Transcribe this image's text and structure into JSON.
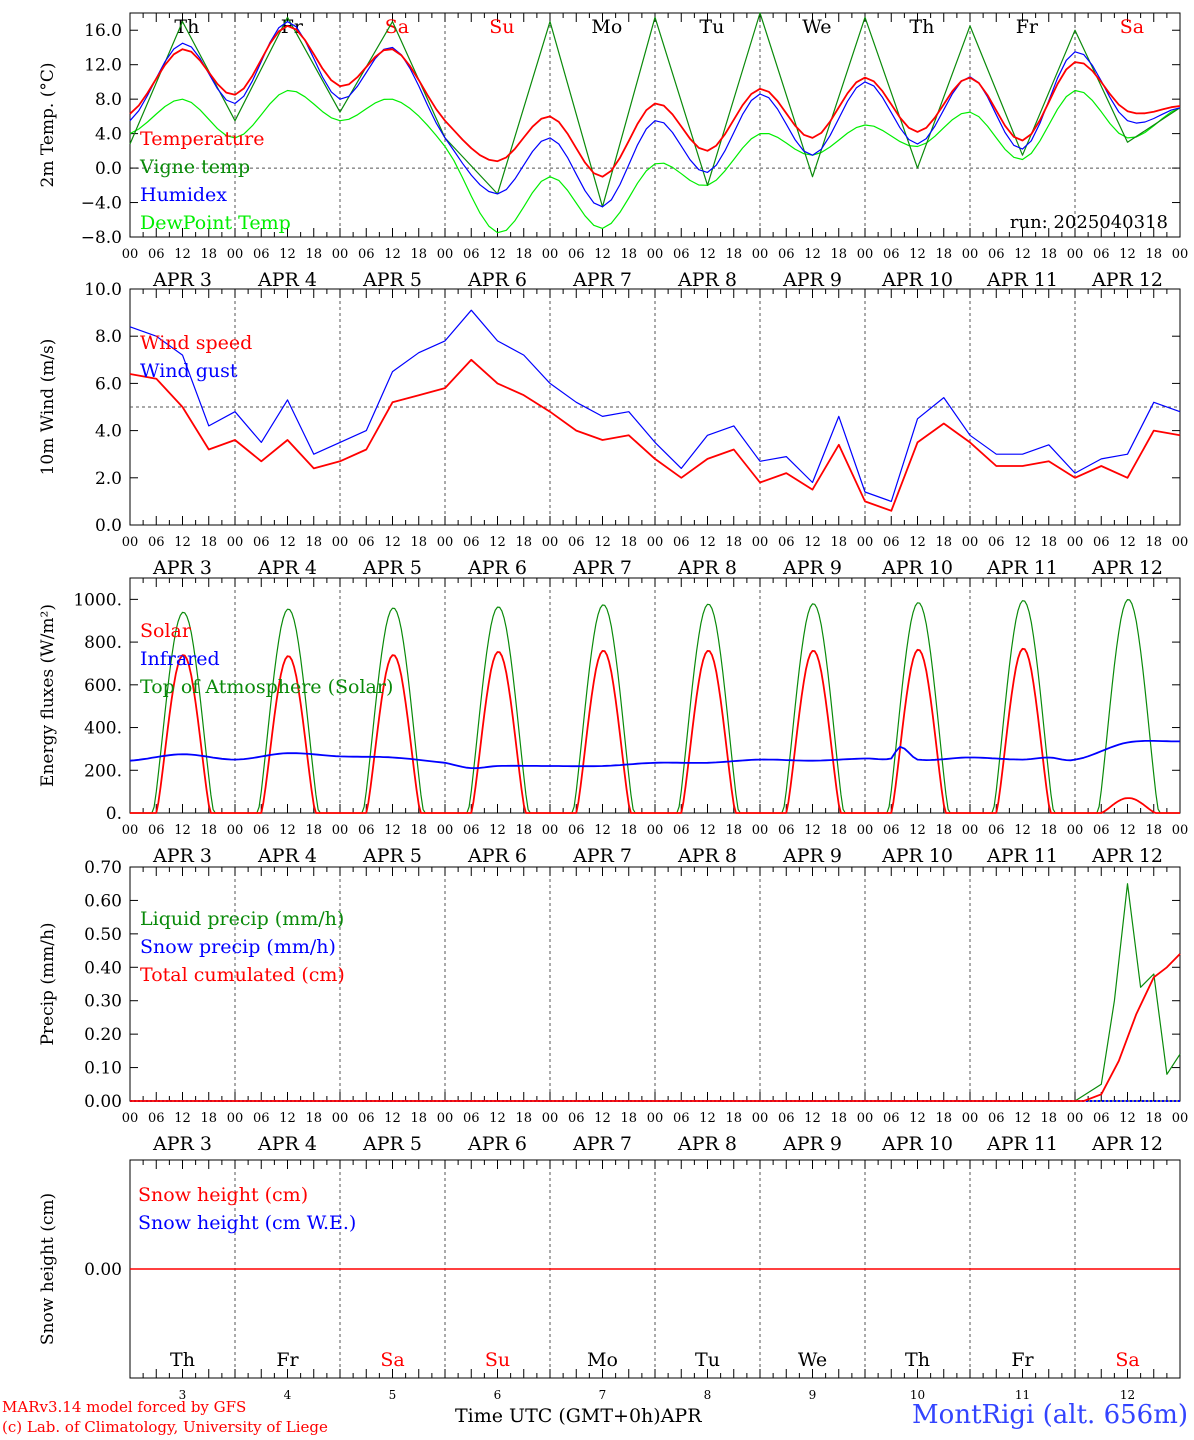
{
  "chart_data": [
    {
      "type": "line",
      "ylabel": "2m Temp. (°C)",
      "ylim": [
        -8,
        18
      ],
      "yticks": [
        "16.0",
        "12.0",
        "8.0",
        "4.0",
        "0.0",
        "−4.0",
        "−8.0"
      ],
      "ytick_values": [
        16,
        12,
        8,
        4,
        0,
        -4,
        -8
      ],
      "reference_line": 0,
      "annotation": "run: 2025040318",
      "x": [
        0,
        12,
        24,
        36,
        48,
        60,
        72,
        84,
        96,
        108,
        120,
        132,
        144,
        156,
        168,
        180,
        192,
        204,
        216,
        228,
        240
      ],
      "series": [
        {
          "name": "Temperature",
          "color": "#ff0000",
          "values": [
            6.3,
            13.8,
            8.5,
            16.5,
            9.5,
            13.8,
            5.5,
            0.8,
            6.0,
            -1.0,
            7.5,
            2.0,
            9.2,
            3.5,
            10.5,
            4.2,
            10.5,
            3.2,
            12.3,
            6.6,
            7.2
          ]
        },
        {
          "name": "Vigne temp",
          "color": "#0a8a0a",
          "values": [
            2.8,
            17.0,
            5.5,
            17.5,
            6.5,
            17.0,
            3.5,
            -3.0,
            17.0,
            -4.5,
            17.5,
            -2.0,
            18.0,
            -1.0,
            17.5,
            0.0,
            16.5,
            1.5,
            16.0,
            3.0,
            7.0
          ]
        },
        {
          "name": "Humidex",
          "color": "#0000ff",
          "values": [
            5.5,
            14.5,
            7.5,
            17.0,
            8.0,
            14.0,
            3.5,
            -3.0,
            3.5,
            -4.5,
            5.5,
            -0.5,
            8.6,
            1.5,
            10.0,
            2.8,
            10.6,
            2.2,
            13.5,
            5.5,
            7.0
          ]
        },
        {
          "name": "DewPoint Temp",
          "color": "#00ee00",
          "values": [
            4.0,
            8.0,
            3.5,
            9.0,
            5.5,
            8.0,
            2.5,
            -7.5,
            -1.0,
            -7.0,
            0.5,
            -2.0,
            4.0,
            1.5,
            5.0,
            2.5,
            6.5,
            1.0,
            9.0,
            3.5,
            7.0
          ]
        }
      ]
    },
    {
      "type": "line",
      "ylabel": "10m Wind (m/s)",
      "ylim": [
        0,
        10
      ],
      "yticks": [
        "10.0",
        "8.0",
        "6.0",
        "4.0",
        "2.0",
        "0.0"
      ],
      "ytick_values": [
        10,
        8,
        6,
        4,
        2,
        0
      ],
      "reference_line": 5,
      "x": [
        0,
        6,
        12,
        18,
        24,
        30,
        36,
        42,
        48,
        54,
        60,
        66,
        72,
        78,
        84,
        90,
        96,
        102,
        108,
        114,
        120,
        126,
        132,
        138,
        144,
        150,
        156,
        162,
        168,
        174,
        180,
        186,
        192,
        198,
        204,
        210,
        216,
        222,
        228,
        234,
        240
      ],
      "series": [
        {
          "name": "Wind speed",
          "color": "#ff0000",
          "values": [
            6.4,
            6.2,
            5.0,
            3.2,
            3.6,
            2.7,
            3.6,
            2.4,
            2.7,
            3.2,
            5.2,
            5.5,
            5.8,
            7.0,
            6.0,
            5.5,
            4.8,
            4.0,
            3.6,
            3.8,
            2.8,
            2.0,
            2.8,
            3.2,
            1.8,
            2.2,
            1.5,
            3.4,
            1.0,
            0.6,
            3.5,
            4.3,
            3.5,
            2.5,
            2.5,
            2.7,
            2.0,
            2.5,
            2.0,
            4.0,
            3.8
          ]
        },
        {
          "name": "Wind gust",
          "color": "#0000ff",
          "values": [
            8.4,
            8.0,
            7.2,
            4.2,
            4.8,
            3.5,
            5.3,
            3.0,
            3.5,
            4.0,
            6.5,
            7.3,
            7.8,
            9.1,
            7.8,
            7.2,
            6.0,
            5.2,
            4.6,
            4.8,
            3.5,
            2.4,
            3.8,
            4.2,
            2.7,
            2.9,
            1.8,
            4.6,
            1.4,
            1.0,
            4.5,
            5.4,
            3.8,
            3.0,
            3.0,
            3.4,
            2.2,
            2.8,
            3.0,
            5.2,
            4.8
          ]
        }
      ]
    },
    {
      "type": "line",
      "ylabel": "Energy fluxes (W/m²)",
      "ylim": [
        0,
        1100
      ],
      "yticks": [
        "1000.",
        "800.",
        "600.",
        "400.",
        "200.",
        "0."
      ],
      "ytick_values": [
        1000,
        800,
        600,
        400,
        200,
        0
      ],
      "solar_peaks": [
        740,
        735,
        740,
        755,
        760,
        760,
        760,
        765,
        770,
        70
      ],
      "toa_peaks": [
        940,
        955,
        960,
        965,
        975,
        978,
        980,
        985,
        995,
        1000
      ],
      "series": [
        {
          "name": "Solar",
          "color": "#ff0000"
        },
        {
          "name": "Infrared",
          "color": "#0000ff",
          "x": [
            0,
            12,
            24,
            36,
            48,
            60,
            72,
            78,
            84,
            96,
            108,
            120,
            132,
            144,
            156,
            168,
            174,
            176,
            180,
            192,
            204,
            210,
            216,
            228,
            240
          ],
          "values": [
            245,
            275,
            250,
            280,
            265,
            260,
            235,
            210,
            220,
            220,
            220,
            235,
            235,
            250,
            245,
            255,
            255,
            310,
            250,
            260,
            250,
            260,
            250,
            330,
            335
          ]
        },
        {
          "name": "Top of Atmosphere (Solar)",
          "color": "#0a8a0a"
        }
      ]
    },
    {
      "type": "line",
      "ylabel": "Precip (mm/h)",
      "ylim": [
        0,
        0.7
      ],
      "yticks": [
        "0.70",
        "0.60",
        "0.50",
        "0.40",
        "0.30",
        "0.20",
        "0.10",
        "0.00"
      ],
      "ytick_values": [
        0.7,
        0.6,
        0.5,
        0.4,
        0.3,
        0.2,
        0.1,
        0
      ],
      "series": [
        {
          "name": "Liquid precip (mm/h)",
          "color": "#0a8a0a",
          "x": [
            0,
            216,
            222,
            225,
            228,
            231,
            234,
            237,
            240
          ],
          "values": [
            0,
            0,
            0.05,
            0.3,
            0.65,
            0.34,
            0.38,
            0.08,
            0.14
          ]
        },
        {
          "name": "Snow precip (mm/h)",
          "color": "#0000ff",
          "x": [
            0,
            240
          ],
          "values": [
            0,
            0
          ]
        },
        {
          "name": "Total cumulated (cm)",
          "color": "#ff0000",
          "x": [
            0,
            218,
            222,
            226,
            230,
            234,
            237,
            240
          ],
          "values": [
            0,
            0,
            0.02,
            0.12,
            0.26,
            0.37,
            0.4,
            0.44
          ]
        }
      ]
    },
    {
      "type": "line",
      "ylabel": "Snow height (cm)",
      "yticks": [
        "0.00"
      ],
      "series": [
        {
          "name": "Snow height (cm)",
          "color": "#ff0000",
          "x": [
            0,
            240
          ],
          "values": [
            0,
            0
          ]
        },
        {
          "name": "Snow height (cm W.E.)",
          "color": "#0000ff",
          "x": [
            0,
            240
          ],
          "values": [
            0,
            0
          ]
        }
      ]
    }
  ],
  "axis": {
    "hour_labels": [
      "00",
      "06",
      "12",
      "18"
    ],
    "final_hour_label": "00",
    "date_labels": [
      "APR  3",
      "APR  4",
      "APR  5",
      "APR  6",
      "APR  7",
      "APR  8",
      "APR  9",
      "APR 10",
      "APR 11",
      "APR 12"
    ],
    "days": [
      {
        "name": "Th",
        "color": "#000000",
        "num": "3"
      },
      {
        "name": "Fr",
        "color": "#000000",
        "num": "4"
      },
      {
        "name": "Sa",
        "color": "#ff0000",
        "num": "5"
      },
      {
        "name": "Su",
        "color": "#ff0000",
        "num": "6"
      },
      {
        "name": "Mo",
        "color": "#000000",
        "num": "7"
      },
      {
        "name": "Tu",
        "color": "#000000",
        "num": "8"
      },
      {
        "name": "We",
        "color": "#000000",
        "num": "9"
      },
      {
        "name": "Th",
        "color": "#000000",
        "num": "10"
      },
      {
        "name": "Fr",
        "color": "#000000",
        "num": "11"
      },
      {
        "name": "Sa",
        "color": "#ff0000",
        "num": "12"
      }
    ]
  },
  "footer": {
    "credit_line1": "MARv3.14 model forced by GFS",
    "credit_line2": "(c) Lab. of Climatology, University of Liege",
    "xaxis_title": "Time UTC (GMT+0h)APR",
    "station": "MontRigi (alt. 656m)"
  }
}
